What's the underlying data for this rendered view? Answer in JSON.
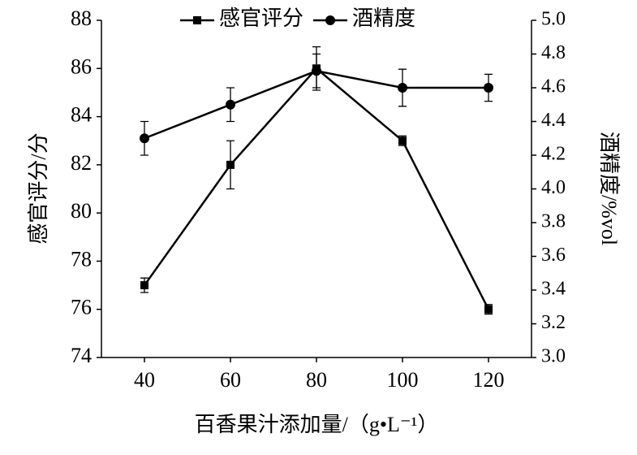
{
  "chart_data": {
    "type": "line",
    "x_label": "百香果汁添加量/（g•L⁻¹）",
    "y_label": "感官评分/分",
    "y2_label": "酒精度/%vol",
    "x": [
      40,
      60,
      80,
      100,
      120
    ],
    "xlim": [
      30,
      130
    ],
    "xticks": [
      40,
      60,
      80,
      100,
      120
    ],
    "ylim": [
      74,
      88
    ],
    "yticks": [
      74,
      76,
      78,
      80,
      82,
      84,
      86,
      88
    ],
    "y2lim": [
      3,
      5
    ],
    "y2ticks": [
      {
        "value": 3,
        "label": "3.0"
      },
      3.2,
      3.4,
      3.6,
      3.8,
      {
        "value": 4,
        "label": "4.0"
      },
      4.2,
      4.4,
      4.6,
      4.8,
      {
        "value": 5,
        "label": "5.0"
      }
    ],
    "legend": "top",
    "series": [
      {
        "name": "感官评分",
        "color": "#000000",
        "marker": "square",
        "values": [
          77,
          82,
          86,
          83,
          76
        ],
        "errors": [
          0.3,
          1.0,
          0.9,
          0.2,
          0.2
        ]
      },
      {
        "name": "酒精度",
        "color": "#000000",
        "marker": "circle",
        "axis": "y2",
        "values": [
          4.3,
          4.5,
          4.7,
          4.6,
          4.6
        ],
        "errors": [
          0.1,
          0.1,
          0.1,
          0.11,
          0.08
        ]
      }
    ]
  }
}
